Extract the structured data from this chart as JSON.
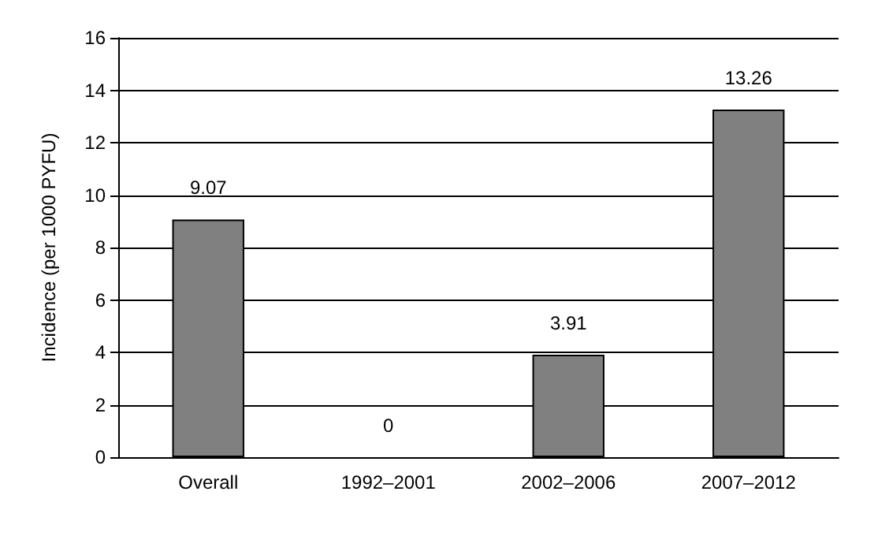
{
  "chart_data": {
    "type": "bar",
    "ylabel": "Incidence (per 1000 PYFU)",
    "categories": [
      "Overall",
      "1992–2001",
      "2002–2006",
      "2007–2012"
    ],
    "values": [
      9.07,
      0,
      3.91,
      13.26
    ],
    "color": "#808080",
    "ylim": [
      0,
      16
    ],
    "yticks": [
      0,
      2,
      4,
      6,
      8,
      10,
      12,
      14,
      16
    ],
    "grid": "y",
    "data_labels": true
  }
}
